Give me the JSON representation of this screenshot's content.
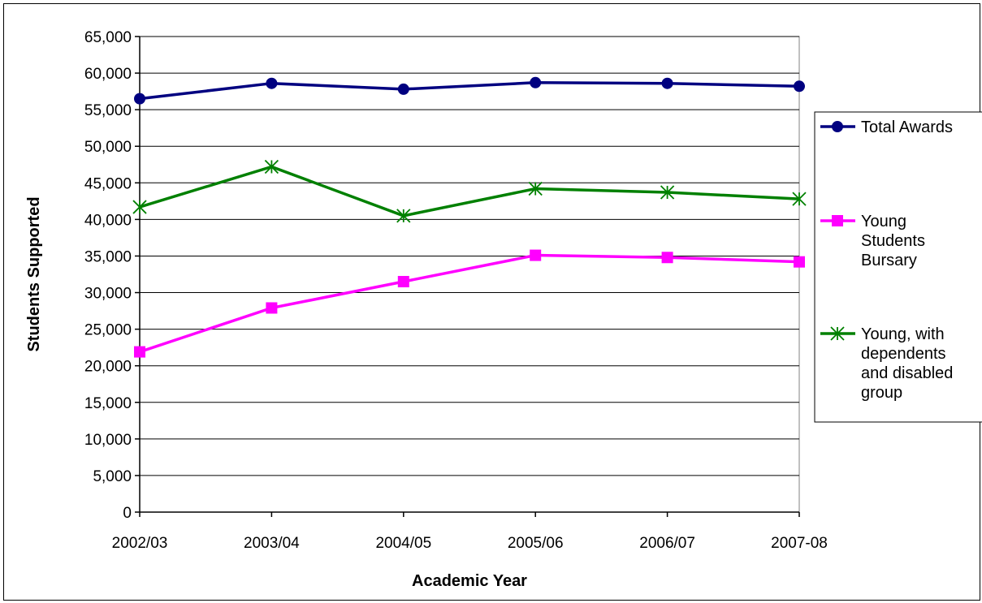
{
  "chart_data": {
    "type": "line",
    "categories": [
      "2002/03",
      "2003/04",
      "2004/05",
      "2005/06",
      "2006/07",
      "2007-08"
    ],
    "series": [
      {
        "name": "Total Awards",
        "values": [
          56500,
          58600,
          57800,
          58700,
          58600,
          58200
        ],
        "color": "#000080",
        "marker": "circle"
      },
      {
        "name": "Young Students Bursary",
        "values": [
          21900,
          27900,
          31500,
          35100,
          34800,
          34200
        ],
        "color": "#FF00FF",
        "marker": "square"
      },
      {
        "name": "Young, with dependents and disabled group",
        "values": [
          41700,
          47200,
          40500,
          44200,
          43700,
          42800
        ],
        "color": "#008000",
        "marker": "star"
      }
    ],
    "xlabel": "Academic Year",
    "ylabel": "Students Supported",
    "ylim": [
      0,
      65000
    ],
    "ytick_step": 5000,
    "yticks": [
      "0",
      "5,000",
      "10,000",
      "15,000",
      "20,000",
      "25,000",
      "30,000",
      "35,000",
      "40,000",
      "45,000",
      "50,000",
      "55,000",
      "60,000",
      "65,000"
    ],
    "grid": true,
    "legend_position": "right",
    "legend": {
      "entries": [
        {
          "lines": [
            "Total Awards"
          ]
        },
        {
          "lines": [
            "Young",
            "Students",
            "Bursary"
          ]
        },
        {
          "lines": [
            "Young, with",
            "dependents",
            "and disabled",
            "group"
          ]
        }
      ]
    }
  }
}
